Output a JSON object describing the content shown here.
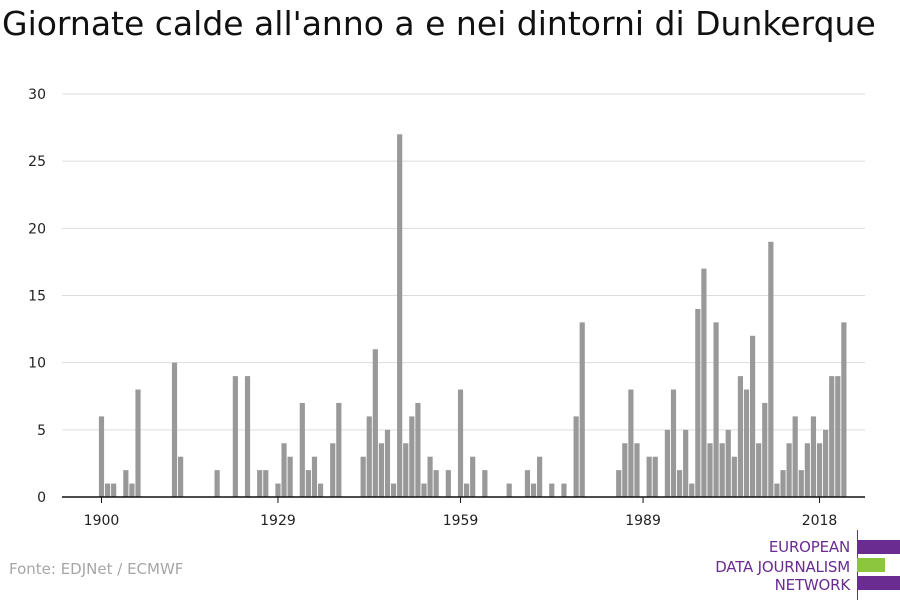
{
  "title": "Giornate calde all'anno a e nei dintorni di Dunkerque",
  "source": "Fonte: EDJNet / ECMWF",
  "logo": {
    "lines": [
      "EUROPEAN",
      "DATA JOURNALISM",
      "NETWORK"
    ],
    "colors": [
      "#6a2c91",
      "#8cc63f",
      "#6a2c91"
    ]
  },
  "chart_data": {
    "type": "bar",
    "x_start": 1900,
    "x_end": 2018,
    "xticks": [
      1900,
      1929,
      1959,
      1989,
      2018
    ],
    "yticks": [
      0,
      5,
      10,
      15,
      20,
      25,
      30
    ],
    "ylim": [
      0,
      30
    ],
    "bar_color": "#999999",
    "grid": true,
    "values": [
      6,
      1,
      1,
      0,
      2,
      1,
      8,
      0,
      0,
      0,
      0,
      0,
      10,
      3,
      0,
      0,
      0,
      0,
      0,
      2,
      0,
      0,
      9,
      0,
      9,
      0,
      2,
      2,
      0,
      1,
      4,
      3,
      0,
      7,
      2,
      3,
      1,
      0,
      4,
      7,
      0,
      0,
      0,
      3,
      6,
      11,
      4,
      5,
      1,
      27,
      4,
      6,
      7,
      1,
      3,
      2,
      0,
      2,
      0,
      8,
      1,
      3,
      0,
      2,
      0,
      0,
      0,
      1,
      0,
      0,
      2,
      1,
      3,
      0,
      1,
      0,
      1,
      0,
      6,
      13,
      0,
      0,
      0,
      0,
      0,
      2,
      4,
      8,
      4,
      0,
      3,
      3,
      0,
      5,
      8,
      2,
      5,
      1,
      14,
      17,
      4,
      13,
      4,
      5,
      3,
      9,
      8,
      12,
      4,
      7,
      19,
      1,
      2,
      4,
      6,
      2,
      4,
      6,
      4,
      5,
      9,
      9,
      13
    ]
  }
}
